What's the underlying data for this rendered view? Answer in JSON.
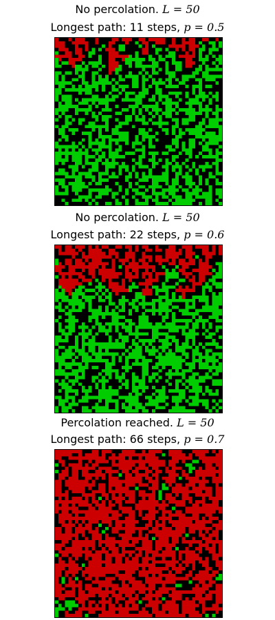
{
  "colors": {
    "blocked": "#000000",
    "open": "#00cc00",
    "reached": "#cc0000"
  },
  "chart_data": [
    {
      "type": "heatmap",
      "status": "No percolation.",
      "L": 50,
      "steps": 11,
      "p": 0.5,
      "seed": 7,
      "percolates": false,
      "title_line1": "No percolation.",
      "title_L": "L = 50",
      "title_line2_prefix": "Longest path: 11 steps,",
      "title_p": "p = 0.5"
    },
    {
      "type": "heatmap",
      "status": "No percolation.",
      "L": 50,
      "steps": 22,
      "p": 0.6,
      "seed": 19,
      "percolates": false,
      "title_line1": "No percolation.",
      "title_L": "L = 50",
      "title_line2_prefix": "Longest path: 22 steps,",
      "title_p": "p = 0.6"
    },
    {
      "type": "heatmap",
      "status": "Percolation reached.",
      "L": 50,
      "steps": 66,
      "p": 0.7,
      "seed": 42,
      "percolates": true,
      "title_line1": "Percolation reached.",
      "title_L": "L = 50",
      "title_line2_prefix": "Longest path: 66 steps,",
      "title_p": "p = 0.7"
    }
  ]
}
